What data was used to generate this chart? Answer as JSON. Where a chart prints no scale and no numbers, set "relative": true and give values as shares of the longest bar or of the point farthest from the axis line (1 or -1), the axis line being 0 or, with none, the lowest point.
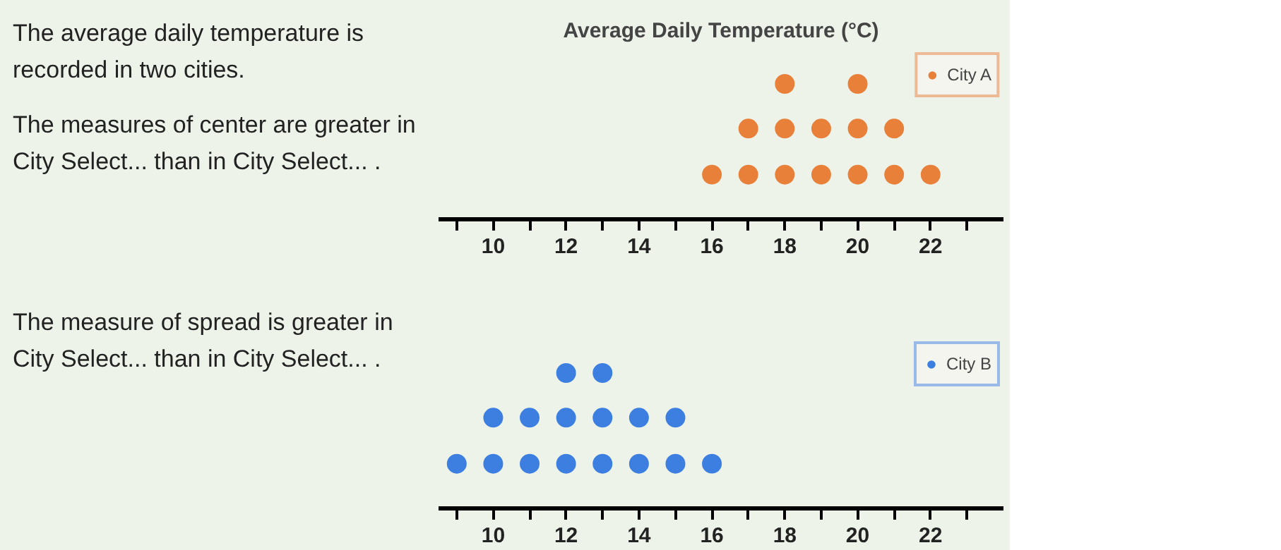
{
  "chart_data": [
    {
      "type": "scatter",
      "title": "Average Daily Temperature (°C)",
      "annotations": [
        "The average daily temperature is recorded in two cities.",
        "The measures of center are greater in City Select... than in City Select... ."
      ],
      "series": [
        {
          "name": "City A",
          "color": "#e8803a",
          "x": [
            16,
            17,
            17,
            18,
            18,
            18,
            19,
            19,
            20,
            20,
            20,
            21,
            21,
            22
          ],
          "values": [
            0.33,
            0.33,
            0.67,
            0.33,
            0.67,
            1,
            0.33,
            0.67,
            0.33,
            0.67,
            1,
            0.33,
            0.67,
            0.33
          ]
        }
      ],
      "xlim": [
        8.5,
        24
      ],
      "relative": true,
      "xticks": [
        {
          "value": 9,
          "label": null
        },
        10,
        {
          "value": 11,
          "label": null
        },
        12,
        {
          "value": 13,
          "label": null
        },
        14,
        {
          "value": 15,
          "label": null
        },
        16,
        {
          "value": 17,
          "label": null
        },
        18,
        {
          "value": 19,
          "label": null
        },
        20,
        {
          "value": 21,
          "label": null
        },
        22,
        {
          "value": 23,
          "label": null
        }
      ],
      "tick_labels": "x",
      "marker": "circle",
      "legend": "right"
    },
    {
      "type": "scatter",
      "annotations": [
        "The measure of spread is greater in City Select... than in City Select... ."
      ],
      "series": [
        {
          "name": "City B",
          "color": "#3d7fe0",
          "x": [
            9,
            10,
            10,
            11,
            11,
            12,
            12,
            12,
            13,
            13,
            13,
            14,
            14,
            15,
            15,
            16
          ],
          "values": [
            0.33,
            0.33,
            0.67,
            0.33,
            0.67,
            0.33,
            0.67,
            1,
            0.33,
            0.67,
            1,
            0.33,
            0.67,
            0.33,
            0.67,
            0.33
          ]
        }
      ],
      "xlim": [
        8.5,
        24
      ],
      "relative": true,
      "xticks": [
        {
          "value": 9,
          "label": null
        },
        10,
        {
          "value": 11,
          "label": null
        },
        12,
        {
          "value": 13,
          "label": null
        },
        14,
        {
          "value": 15,
          "label": null
        },
        16,
        {
          "value": 17,
          "label": null
        },
        18,
        {
          "value": 19,
          "label": null
        },
        20,
        {
          "value": 21,
          "label": null
        },
        22,
        {
          "value": 23,
          "label": null
        }
      ],
      "tick_labels": "x",
      "marker": "circle",
      "legend": "right"
    }
  ]
}
